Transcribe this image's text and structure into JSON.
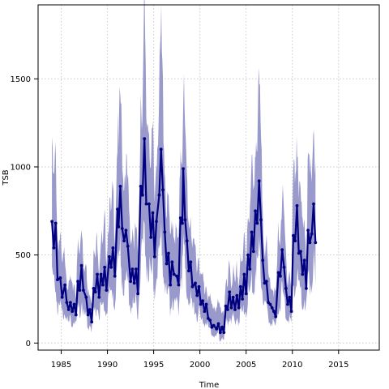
{
  "chart_data": {
    "type": "line",
    "title": "",
    "xlabel": "Time",
    "ylabel": "TSB",
    "xlim": [
      1982.5,
      2019.4
    ],
    "ylim": [
      -40,
      1920
    ],
    "x_ticks": [
      1985,
      1990,
      1995,
      2000,
      2005,
      2010,
      2015
    ],
    "y_ticks": [
      0,
      500,
      1000,
      1500
    ],
    "grid": true,
    "colors": {
      "line": "#000080",
      "band": "#9999cc",
      "grid": "#c8c8c8"
    },
    "series": [
      {
        "points": [
          [
            1984.0,
            690
          ],
          [
            1984.2,
            540
          ],
          [
            1984.4,
            680
          ],
          [
            1984.6,
            360
          ],
          [
            1984.9,
            370
          ],
          [
            1985.1,
            260
          ],
          [
            1985.4,
            330
          ],
          [
            1985.6,
            230
          ],
          [
            1985.8,
            190
          ],
          [
            1986.0,
            230
          ],
          [
            1986.2,
            180
          ],
          [
            1986.4,
            220
          ],
          [
            1986.6,
            160
          ],
          [
            1986.8,
            350
          ],
          [
            1987.0,
            300
          ],
          [
            1987.2,
            440
          ],
          [
            1987.4,
            300
          ],
          [
            1987.7,
            260
          ],
          [
            1987.9,
            160
          ],
          [
            1988.1,
            190
          ],
          [
            1988.3,
            120
          ],
          [
            1988.5,
            310
          ],
          [
            1988.7,
            290
          ],
          [
            1988.9,
            390
          ],
          [
            1989.1,
            260
          ],
          [
            1989.3,
            390
          ],
          [
            1989.5,
            330
          ],
          [
            1989.7,
            430
          ],
          [
            1989.9,
            300
          ],
          [
            1990.2,
            490
          ],
          [
            1990.4,
            430
          ],
          [
            1990.6,
            540
          ],
          [
            1990.8,
            380
          ],
          [
            1991.1,
            760
          ],
          [
            1991.2,
            660
          ],
          [
            1991.4,
            890
          ],
          [
            1991.6,
            650
          ],
          [
            1991.8,
            580
          ],
          [
            1992.0,
            640
          ],
          [
            1992.2,
            550
          ],
          [
            1992.5,
            350
          ],
          [
            1992.7,
            420
          ],
          [
            1992.9,
            340
          ],
          [
            1993.1,
            420
          ],
          [
            1993.3,
            280
          ],
          [
            1993.6,
            890
          ],
          [
            1993.8,
            840
          ],
          [
            1994.0,
            1160
          ],
          [
            1994.2,
            790
          ],
          [
            1994.5,
            790
          ],
          [
            1994.7,
            600
          ],
          [
            1994.9,
            740
          ],
          [
            1995.1,
            490
          ],
          [
            1995.3,
            690
          ],
          [
            1995.6,
            840
          ],
          [
            1995.8,
            1100
          ],
          [
            1996.0,
            870
          ],
          [
            1996.2,
            630
          ],
          [
            1996.4,
            450
          ],
          [
            1996.6,
            510
          ],
          [
            1996.8,
            330
          ],
          [
            1997.0,
            460
          ],
          [
            1997.2,
            390
          ],
          [
            1997.5,
            380
          ],
          [
            1997.7,
            330
          ],
          [
            1997.9,
            710
          ],
          [
            1998.1,
            680
          ],
          [
            1998.2,
            990
          ],
          [
            1998.4,
            700
          ],
          [
            1998.6,
            580
          ],
          [
            1998.8,
            410
          ],
          [
            1999.0,
            460
          ],
          [
            1999.2,
            320
          ],
          [
            1999.5,
            340
          ],
          [
            1999.7,
            270
          ],
          [
            1999.9,
            320
          ],
          [
            2000.1,
            220
          ],
          [
            2000.3,
            240
          ],
          [
            2000.5,
            180
          ],
          [
            2000.7,
            220
          ],
          [
            2000.9,
            140
          ],
          [
            2001.1,
            130
          ],
          [
            2001.3,
            90
          ],
          [
            2001.5,
            100
          ],
          [
            2001.8,
            80
          ],
          [
            2002.0,
            110
          ],
          [
            2002.2,
            60
          ],
          [
            2002.4,
            90
          ],
          [
            2002.6,
            60
          ],
          [
            2002.8,
            210
          ],
          [
            2003.0,
            190
          ],
          [
            2003.2,
            290
          ],
          [
            2003.4,
            200
          ],
          [
            2003.6,
            260
          ],
          [
            2003.8,
            190
          ],
          [
            2004.0,
            270
          ],
          [
            2004.2,
            200
          ],
          [
            2004.4,
            320
          ],
          [
            2004.6,
            250
          ],
          [
            2004.8,
            390
          ],
          [
            2005.0,
            280
          ],
          [
            2005.2,
            500
          ],
          [
            2005.4,
            420
          ],
          [
            2005.6,
            630
          ],
          [
            2005.8,
            520
          ],
          [
            2006.0,
            750
          ],
          [
            2006.2,
            680
          ],
          [
            2006.4,
            920
          ],
          [
            2006.6,
            700
          ],
          [
            2006.8,
            470
          ],
          [
            2007.0,
            340
          ],
          [
            2007.2,
            350
          ],
          [
            2007.4,
            230
          ],
          [
            2007.6,
            220
          ],
          [
            2007.8,
            200
          ],
          [
            2008.0,
            180
          ],
          [
            2008.2,
            150
          ],
          [
            2008.5,
            400
          ],
          [
            2008.7,
            380
          ],
          [
            2008.9,
            530
          ],
          [
            2009.1,
            430
          ],
          [
            2009.3,
            310
          ],
          [
            2009.5,
            220
          ],
          [
            2009.7,
            260
          ],
          [
            2009.9,
            180
          ],
          [
            2010.1,
            610
          ],
          [
            2010.3,
            580
          ],
          [
            2010.5,
            780
          ],
          [
            2010.7,
            510
          ],
          [
            2010.9,
            520
          ],
          [
            2011.1,
            390
          ],
          [
            2011.3,
            470
          ],
          [
            2011.5,
            310
          ],
          [
            2011.7,
            640
          ],
          [
            2011.9,
            570
          ],
          [
            2012.1,
            620
          ],
          [
            2012.3,
            790
          ],
          [
            2012.5,
            570
          ]
        ]
      }
    ]
  }
}
